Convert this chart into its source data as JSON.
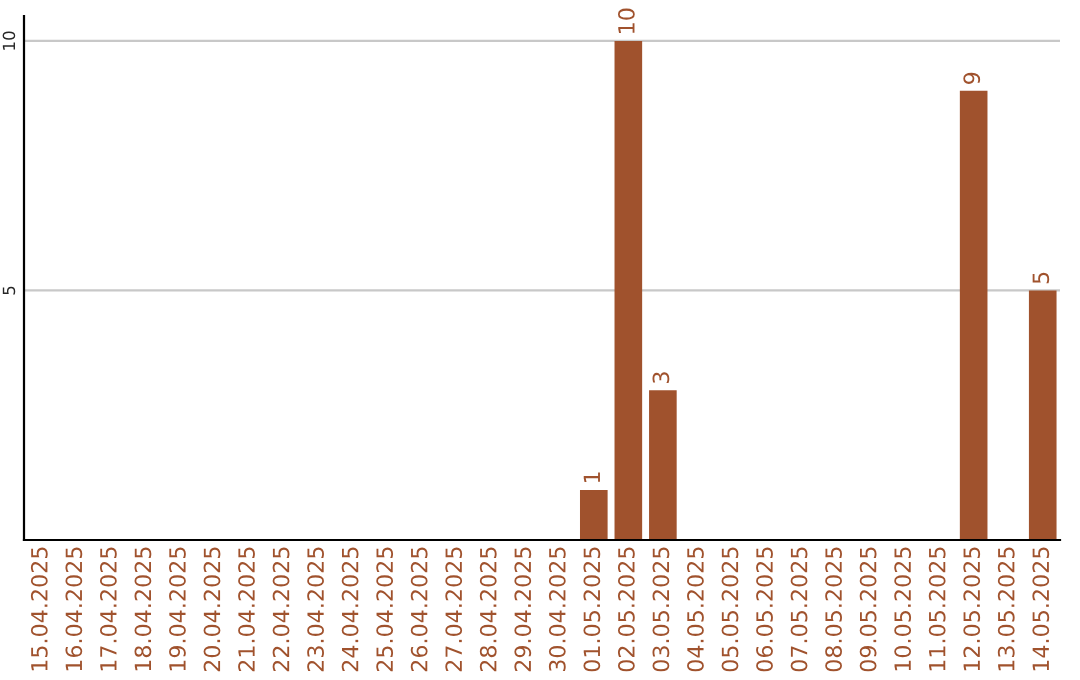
{
  "chart_data": {
    "type": "bar",
    "categories": [
      "15.04.2025",
      "16.04.2025",
      "17.04.2025",
      "18.04.2025",
      "19.04.2025",
      "20.04.2025",
      "21.04.2025",
      "22.04.2025",
      "23.04.2025",
      "24.04.2025",
      "25.04.2025",
      "26.04.2025",
      "27.04.2025",
      "28.04.2025",
      "29.04.2025",
      "30.04.2025",
      "01.05.2025",
      "02.05.2025",
      "03.05.2025",
      "04.05.2025",
      "05.05.2025",
      "06.05.2025",
      "07.05.2025",
      "08.05.2025",
      "09.05.2025",
      "10.05.2025",
      "11.05.2025",
      "12.05.2025",
      "13.05.2025",
      "14.05.2025"
    ],
    "values": [
      0,
      0,
      0,
      0,
      0,
      0,
      0,
      0,
      0,
      0,
      0,
      0,
      0,
      0,
      0,
      0,
      1,
      10,
      3,
      0,
      0,
      0,
      0,
      0,
      0,
      0,
      0,
      9,
      0,
      5
    ],
    "value_labels": [
      null,
      null,
      null,
      null,
      null,
      null,
      null,
      null,
      null,
      null,
      null,
      null,
      null,
      null,
      null,
      null,
      "1",
      "10",
      "3",
      null,
      null,
      null,
      null,
      null,
      null,
      null,
      null,
      "9",
      null,
      "5"
    ],
    "color": "#a0522d",
    "ylim": [
      0,
      10.5
    ],
    "yticks": [
      5,
      10
    ],
    "grid": "y"
  }
}
